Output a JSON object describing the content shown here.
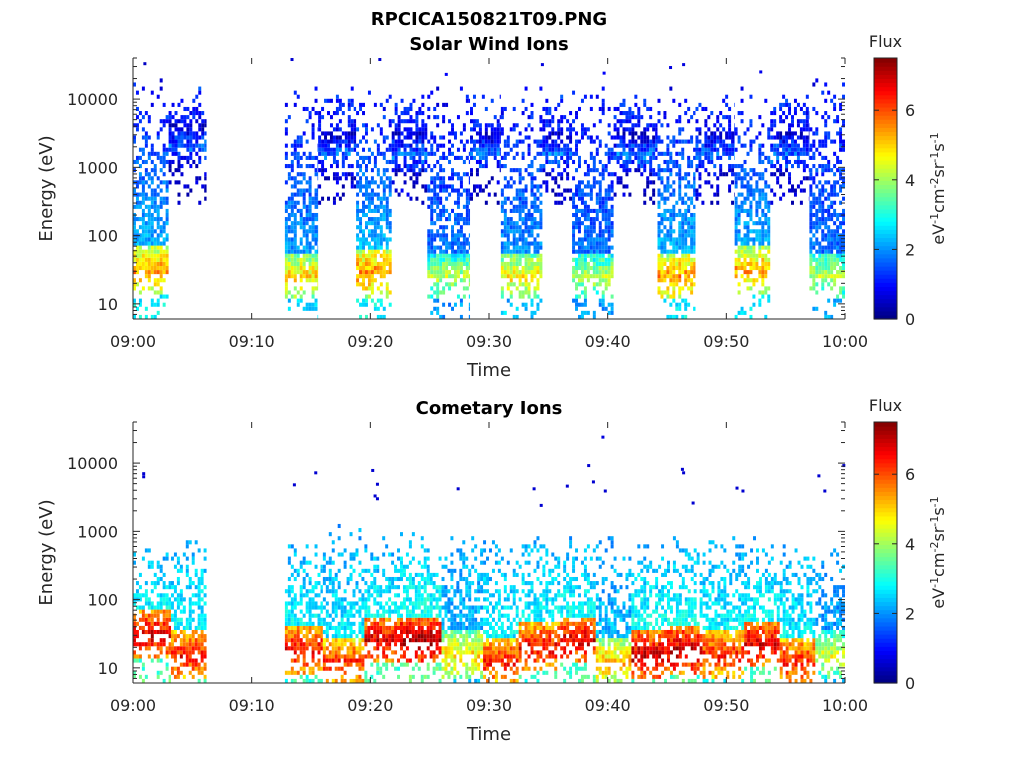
{
  "figure_title": "RPCICA150821T09.PNG",
  "chart_data": [
    {
      "type": "heatmap",
      "title": "Solar Wind Ions",
      "xlabel": "Time",
      "ylabel": "Energy (eV)",
      "x_ticks": [
        "09:00",
        "09:10",
        "09:20",
        "09:30",
        "09:40",
        "09:50",
        "10:00"
      ],
      "x_range_minutes": [
        0,
        60
      ],
      "y_scale": "log",
      "y_ticks": [
        "10",
        "100",
        "1000",
        "10000"
      ],
      "y_range": [
        6,
        40000
      ],
      "colorbar": {
        "title": "Flux",
        "label": "eV-1cm-2sr-1s-1",
        "ticks": [
          "0",
          "2",
          "4",
          "6"
        ],
        "range": [
          0,
          7.5
        ],
        "colormap": "jet"
      },
      "blocks": [
        {
          "t_start": 0.0,
          "t_end": 3.0,
          "e_min": 6,
          "e_max": 20000,
          "peak_energy": 30,
          "peak_flux": 5.5,
          "highE_flux": 0.9
        },
        {
          "t_start": 3.0,
          "t_end": 6.2,
          "e_min": 300,
          "e_max": 15000,
          "peak_energy": 2000,
          "peak_flux": 1.7,
          "highE_flux": 1.3
        },
        {
          "t_start": 12.8,
          "t_end": 15.6,
          "e_min": 6,
          "e_max": 15000,
          "peak_energy": 25,
          "peak_flux": 5.0,
          "highE_flux": 0.9
        },
        {
          "t_start": 15.6,
          "t_end": 18.8,
          "e_min": 300,
          "e_max": 15000,
          "peak_energy": 1500,
          "peak_flux": 1.8,
          "highE_flux": 1.3
        },
        {
          "t_start": 18.8,
          "t_end": 21.8,
          "e_min": 6,
          "e_max": 15000,
          "peak_energy": 28,
          "peak_flux": 5.6,
          "highE_flux": 0.9
        },
        {
          "t_start": 21.8,
          "t_end": 24.8,
          "e_min": 300,
          "e_max": 12000,
          "peak_energy": 1500,
          "peak_flux": 1.8,
          "highE_flux": 1.3
        },
        {
          "t_start": 24.8,
          "t_end": 28.4,
          "e_min": 6,
          "e_max": 15000,
          "peak_energy": 25,
          "peak_flux": 4.2,
          "highE_flux": 0.9
        },
        {
          "t_start": 28.4,
          "t_end": 31.0,
          "e_min": 300,
          "e_max": 12000,
          "peak_energy": 1500,
          "peak_flux": 1.8,
          "highE_flux": 1.3
        },
        {
          "t_start": 31.0,
          "t_end": 34.5,
          "e_min": 6,
          "e_max": 15000,
          "peak_energy": 25,
          "peak_flux": 4.8,
          "highE_flux": 0.9
        },
        {
          "t_start": 34.5,
          "t_end": 37.0,
          "e_min": 300,
          "e_max": 12000,
          "peak_energy": 1500,
          "peak_flux": 1.8,
          "highE_flux": 1.3
        },
        {
          "t_start": 37.0,
          "t_end": 40.5,
          "e_min": 6,
          "e_max": 15000,
          "peak_energy": 25,
          "peak_flux": 4.2,
          "highE_flux": 0.9
        },
        {
          "t_start": 40.5,
          "t_end": 44.2,
          "e_min": 300,
          "e_max": 12000,
          "peak_energy": 1500,
          "peak_flux": 1.8,
          "highE_flux": 1.3
        },
        {
          "t_start": 44.2,
          "t_end": 47.4,
          "e_min": 6,
          "e_max": 15000,
          "peak_energy": 25,
          "peak_flux": 5.5,
          "highE_flux": 0.9
        },
        {
          "t_start": 47.4,
          "t_end": 50.7,
          "e_min": 300,
          "e_max": 12000,
          "peak_energy": 1500,
          "peak_flux": 1.8,
          "highE_flux": 1.3
        },
        {
          "t_start": 50.7,
          "t_end": 53.7,
          "e_min": 6,
          "e_max": 15000,
          "peak_energy": 30,
          "peak_flux": 5.4,
          "highE_flux": 0.9
        },
        {
          "t_start": 53.7,
          "t_end": 57.0,
          "e_min": 300,
          "e_max": 12000,
          "peak_energy": 1500,
          "peak_flux": 1.8,
          "highE_flux": 1.3
        },
        {
          "t_start": 57.0,
          "t_end": 60.0,
          "e_min": 6,
          "e_max": 20000,
          "peak_energy": 25,
          "peak_flux": 4.2,
          "highE_flux": 0.9
        }
      ],
      "points": [
        {
          "t": 1.0,
          "e": 33000,
          "flux": 0.5
        },
        {
          "t": 13.4,
          "e": 38000,
          "flux": 0.6
        },
        {
          "t": 20.8,
          "e": 38000,
          "flux": 0.6
        },
        {
          "t": 26.4,
          "e": 23000,
          "flux": 0.9
        },
        {
          "t": 34.5,
          "e": 32000,
          "flux": 0.7
        },
        {
          "t": 39.7,
          "e": 24000,
          "flux": 0.9
        },
        {
          "t": 45.3,
          "e": 29000,
          "flux": 0.7
        },
        {
          "t": 46.4,
          "e": 32000,
          "flux": 0.7
        },
        {
          "t": 52.9,
          "e": 25000,
          "flux": 0.8
        }
      ]
    },
    {
      "type": "heatmap",
      "title": "Cometary Ions",
      "xlabel": "Time",
      "ylabel": "Energy (eV)",
      "x_ticks": [
        "09:00",
        "09:10",
        "09:20",
        "09:30",
        "09:40",
        "09:50",
        "10:00"
      ],
      "x_range_minutes": [
        0,
        60
      ],
      "y_scale": "log",
      "y_ticks": [
        "10",
        "100",
        "1000",
        "10000"
      ],
      "y_range": [
        6,
        40000
      ],
      "colorbar": {
        "title": "Flux",
        "label": "eV-1cm-2sr-1s-1",
        "ticks": [
          "0",
          "2",
          "4",
          "6"
        ],
        "range": [
          0,
          7.5
        ],
        "colormap": "jet"
      },
      "blocks": [
        {
          "t_start": 0.0,
          "t_end": 3.2,
          "e_min": 6,
          "e_max": 600,
          "peak_energy": 30,
          "peak_flux": 6.8,
          "highE_flux": 2.2
        },
        {
          "t_start": 3.2,
          "t_end": 6.2,
          "e_min": 6,
          "e_max": 1000,
          "peak_energy": 15,
          "peak_flux": 6.5,
          "highE_flux": 2.2
        },
        {
          "t_start": 12.8,
          "t_end": 16.0,
          "e_min": 6,
          "e_max": 700,
          "peak_energy": 18,
          "peak_flux": 6.6,
          "highE_flux": 2.2
        },
        {
          "t_start": 16.0,
          "t_end": 19.5,
          "e_min": 6,
          "e_max": 1200,
          "peak_energy": 12,
          "peak_flux": 6.2,
          "highE_flux": 2.2
        },
        {
          "t_start": 19.5,
          "t_end": 22.5,
          "e_min": 6,
          "e_max": 800,
          "peak_energy": 25,
          "peak_flux": 6.8,
          "highE_flux": 2.2
        },
        {
          "t_start": 22.5,
          "t_end": 26.0,
          "e_min": 6,
          "e_max": 1000,
          "peak_energy": 25,
          "peak_flux": 7.2,
          "highE_flux": 2.2
        },
        {
          "t_start": 26.0,
          "t_end": 29.5,
          "e_min": 6,
          "e_max": 900,
          "peak_energy": 15,
          "peak_flux": 5.0,
          "highE_flux": 2.2
        },
        {
          "t_start": 29.5,
          "t_end": 32.5,
          "e_min": 6,
          "e_max": 800,
          "peak_energy": 12,
          "peak_flux": 6.4,
          "highE_flux": 2.2
        },
        {
          "t_start": 32.5,
          "t_end": 36.0,
          "e_min": 6,
          "e_max": 900,
          "peak_energy": 20,
          "peak_flux": 6.6,
          "highE_flux": 2.2
        },
        {
          "t_start": 36.0,
          "t_end": 39.0,
          "e_min": 6,
          "e_max": 900,
          "peak_energy": 25,
          "peak_flux": 6.8,
          "highE_flux": 2.2
        },
        {
          "t_start": 39.0,
          "t_end": 42.0,
          "e_min": 6,
          "e_max": 800,
          "peak_energy": 12,
          "peak_flux": 5.2,
          "highE_flux": 2.2
        },
        {
          "t_start": 42.0,
          "t_end": 45.0,
          "e_min": 6,
          "e_max": 800,
          "peak_energy": 15,
          "peak_flux": 7.0,
          "highE_flux": 2.2
        },
        {
          "t_start": 45.0,
          "t_end": 48.0,
          "e_min": 6,
          "e_max": 900,
          "peak_energy": 18,
          "peak_flux": 7.0,
          "highE_flux": 2.2
        },
        {
          "t_start": 48.0,
          "t_end": 51.5,
          "e_min": 6,
          "e_max": 1000,
          "peak_energy": 15,
          "peak_flux": 6.4,
          "highE_flux": 2.2
        },
        {
          "t_start": 51.5,
          "t_end": 54.5,
          "e_min": 6,
          "e_max": 800,
          "peak_energy": 22,
          "peak_flux": 6.8,
          "highE_flux": 2.2
        },
        {
          "t_start": 54.5,
          "t_end": 57.5,
          "e_min": 6,
          "e_max": 700,
          "peak_energy": 12,
          "peak_flux": 6.4,
          "highE_flux": 2.2
        },
        {
          "t_start": 57.5,
          "t_end": 60.0,
          "e_min": 6,
          "e_max": 600,
          "peak_energy": 15,
          "peak_flux": 4.5,
          "highE_flux": 2.2
        }
      ],
      "points": [
        {
          "t": 0.9,
          "e": 7000,
          "flux": 0.6
        },
        {
          "t": 0.9,
          "e": 6300,
          "flux": 0.6
        },
        {
          "t": 13.6,
          "e": 4800,
          "flux": 0.6
        },
        {
          "t": 15.4,
          "e": 7200,
          "flux": 0.6
        },
        {
          "t": 20.2,
          "e": 7800,
          "flux": 0.6
        },
        {
          "t": 20.6,
          "e": 4900,
          "flux": 0.6
        },
        {
          "t": 20.4,
          "e": 3300,
          "flux": 0.6
        },
        {
          "t": 20.6,
          "e": 3000,
          "flux": 0.6
        },
        {
          "t": 27.4,
          "e": 4200,
          "flux": 0.6
        },
        {
          "t": 33.8,
          "e": 4200,
          "flux": 0.6
        },
        {
          "t": 34.4,
          "e": 2400,
          "flux": 0.6
        },
        {
          "t": 36.6,
          "e": 4600,
          "flux": 0.6
        },
        {
          "t": 38.4,
          "e": 9200,
          "flux": 0.6
        },
        {
          "t": 38.8,
          "e": 5300,
          "flux": 0.6
        },
        {
          "t": 39.6,
          "e": 24000,
          "flux": 0.7
        },
        {
          "t": 39.8,
          "e": 3900,
          "flux": 0.6
        },
        {
          "t": 46.3,
          "e": 8100,
          "flux": 0.6
        },
        {
          "t": 46.4,
          "e": 7200,
          "flux": 0.6
        },
        {
          "t": 47.2,
          "e": 2600,
          "flux": 0.6
        },
        {
          "t": 50.9,
          "e": 4300,
          "flux": 0.6
        },
        {
          "t": 51.4,
          "e": 3900,
          "flux": 0.6
        },
        {
          "t": 57.8,
          "e": 6500,
          "flux": 0.6
        },
        {
          "t": 58.3,
          "e": 3900,
          "flux": 0.6
        },
        {
          "t": 59.9,
          "e": 9200,
          "flux": 0.6
        }
      ]
    }
  ]
}
